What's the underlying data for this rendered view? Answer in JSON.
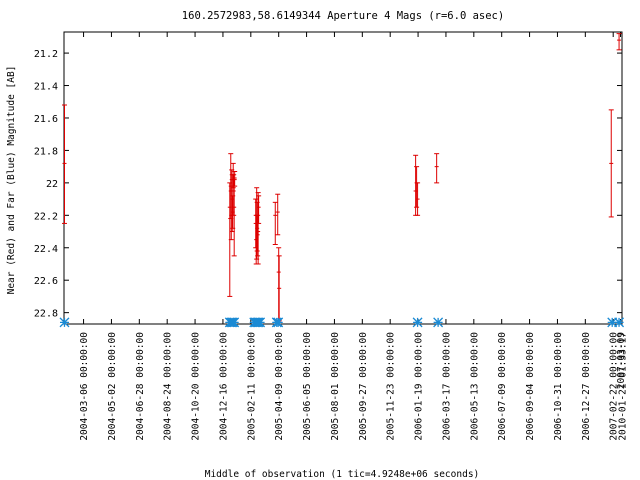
{
  "chart_data": {
    "type": "scatter",
    "title": "160.2572983,58.6149344   Aperture 4 Mags (r=6.0 asec)",
    "xlabel": "Middle of observation (1 tic=4.9248e+06 seconds)",
    "ylabel": "Near (Red) and Far (Blue) Magnitude [AB]",
    "x_ticks": [
      "2004-03-06 00:00:00",
      "2004-05-02 00:00:00",
      "2004-06-28 00:00:00",
      "2004-08-24 00:00:00",
      "2004-10-20 00:00:00",
      "2004-12-16 00:00:00",
      "2005-02-11 00:00:00",
      "2005-04-09 00:00:00",
      "2005-06-05 00:00:00",
      "2005-08-01 00:00:00",
      "2005-09-27 00:00:00",
      "2005-11-23 00:00:00",
      "2006-01-19 00:00:00",
      "2006-03-17 00:00:00",
      "2006-05-13 00:00:00",
      "2006-07-09 00:00:00",
      "2006-09-04 00:00:00",
      "2006-10-31 00:00:00",
      "2006-12-27 00:00:00",
      "2007-02-22 00:00:00"
    ],
    "x_extra_ticks": [
      "2007-03-09",
      "2010-01-21 01:33:17"
    ],
    "y_ticks": [
      "21.2",
      "21.4",
      "21.6",
      "21.8",
      "22",
      "22.2",
      "22.4",
      "22.6",
      "22.8"
    ],
    "ylim": [
      22.87,
      21.07
    ],
    "xlim": [
      "2004-01-26",
      "2007-03-12"
    ],
    "grid": false,
    "colors": {
      "near": "#dd0000",
      "far": "#1a8ad4",
      "frame": "#000000"
    },
    "series": [
      {
        "label_key": "near",
        "points": [
          {
            "x": "2004-01-27",
            "y": 21.88,
            "lo": 21.52,
            "hi": 22.25
          },
          {
            "x": "2004-12-30",
            "y": 22.15,
            "lo": 22.0,
            "hi": 22.7
          },
          {
            "x": "2005-01-01",
            "y": 22.02,
            "lo": 21.82,
            "hi": 22.22
          },
          {
            "x": "2005-01-02",
            "y": 22.2,
            "lo": 22.05,
            "hi": 22.35
          },
          {
            "x": "2005-01-03",
            "y": 21.98,
            "lo": 21.92,
            "hi": 22.05
          },
          {
            "x": "2005-01-04",
            "y": 22.1,
            "lo": 21.95,
            "hi": 22.3
          },
          {
            "x": "2005-01-05",
            "y": 22.18,
            "lo": 22.08,
            "hi": 22.28
          },
          {
            "x": "2005-01-06",
            "y": 21.95,
            "lo": 21.88,
            "hi": 22.03
          },
          {
            "x": "2005-01-07",
            "y": 22.05,
            "lo": 21.95,
            "hi": 22.2
          },
          {
            "x": "2005-01-08",
            "y": 22.15,
            "lo": 21.98,
            "hi": 22.45
          },
          {
            "x": "2005-01-09",
            "y": 21.97,
            "lo": 21.93,
            "hi": 22.02
          },
          {
            "x": "2005-02-21",
            "y": 22.25,
            "lo": 22.1,
            "hi": 22.4
          },
          {
            "x": "2005-02-22",
            "y": 22.35,
            "lo": 22.2,
            "hi": 22.5
          },
          {
            "x": "2005-02-23",
            "y": 22.2,
            "lo": 22.03,
            "hi": 22.47
          },
          {
            "x": "2005-02-24",
            "y": 22.28,
            "lo": 22.12,
            "hi": 22.42
          },
          {
            "x": "2005-02-25",
            "y": 22.32,
            "lo": 22.2,
            "hi": 22.45
          },
          {
            "x": "2005-02-26",
            "y": 22.3,
            "lo": 22.06,
            "hi": 22.5
          },
          {
            "x": "2005-02-27",
            "y": 22.15,
            "lo": 22.08,
            "hi": 22.25
          },
          {
            "x": "2005-04-02",
            "y": 22.2,
            "lo": 22.12,
            "hi": 22.38
          },
          {
            "x": "2005-04-07",
            "y": 22.18,
            "lo": 22.07,
            "hi": 22.32
          },
          {
            "x": "2005-04-09",
            "y": 22.55,
            "lo": 22.4,
            "hi": 22.85
          },
          {
            "x": "2005-04-10",
            "y": 22.65,
            "lo": 22.45,
            "hi": 22.85
          },
          {
            "x": "2006-01-14",
            "y": 22.05,
            "lo": 21.83,
            "hi": 22.2
          },
          {
            "x": "2006-01-16",
            "y": 22.0,
            "lo": 21.9,
            "hi": 22.15
          },
          {
            "x": "2006-01-18",
            "y": 22.1,
            "lo": 22.0,
            "hi": 22.2
          },
          {
            "x": "2006-02-26",
            "y": 21.9,
            "lo": 21.82,
            "hi": 22.0
          },
          {
            "x": "2007-02-18",
            "y": 21.88,
            "lo": 21.55,
            "hi": 22.21
          },
          {
            "x": "2007-03-06",
            "y": 21.12,
            "lo": 21.08,
            "hi": 21.18
          }
        ]
      },
      {
        "label_key": "far",
        "points": [
          {
            "x": "2004-01-27",
            "y": 22.86
          },
          {
            "x": "2004-12-30",
            "y": 22.86
          },
          {
            "x": "2005-01-02",
            "y": 22.86
          },
          {
            "x": "2005-01-05",
            "y": 22.86
          },
          {
            "x": "2005-01-08",
            "y": 22.86
          },
          {
            "x": "2005-02-18",
            "y": 22.86
          },
          {
            "x": "2005-02-21",
            "y": 22.86
          },
          {
            "x": "2005-02-24",
            "y": 22.86
          },
          {
            "x": "2005-02-27",
            "y": 22.86
          },
          {
            "x": "2005-03-02",
            "y": 22.86
          },
          {
            "x": "2005-04-05",
            "y": 22.86
          },
          {
            "x": "2005-04-08",
            "y": 22.86
          },
          {
            "x": "2006-01-18",
            "y": 22.86
          },
          {
            "x": "2006-03-01",
            "y": 22.86
          },
          {
            "x": "2007-02-20",
            "y": 22.86
          },
          {
            "x": "2007-03-06",
            "y": 22.86
          }
        ]
      }
    ]
  }
}
